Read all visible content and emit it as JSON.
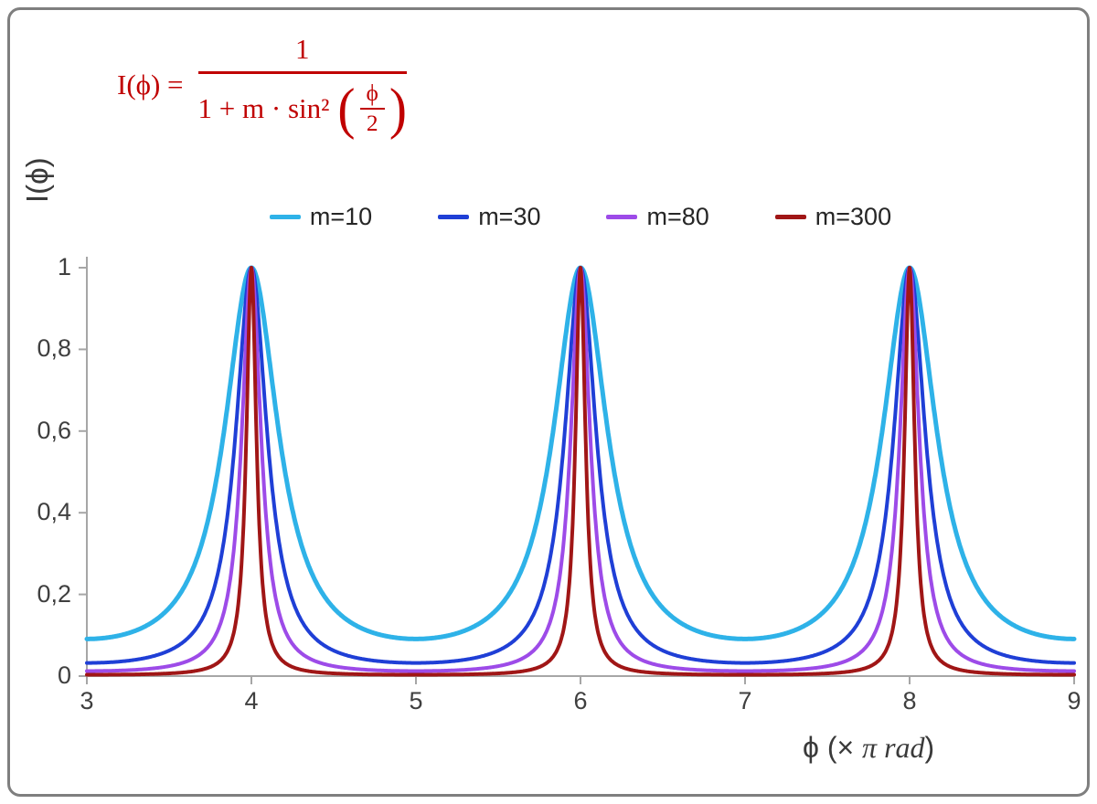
{
  "formula": {
    "lhs": "I(ϕ) =",
    "numerator": "1",
    "den_prefix": "1 + m · sin²",
    "lparen": "(",
    "rparen": ")",
    "inner_num": "ϕ",
    "inner_den": "2",
    "color": "#c00000"
  },
  "axis": {
    "ylabel": "I(ϕ)",
    "xlabel_pre": "ϕ  (× ",
    "xlabel_italic": "π rad",
    "xlabel_post": ")"
  },
  "chart_data": {
    "type": "line",
    "title": "",
    "function": "I(ϕ) = 1 / (1 + m·sin²(ϕ/2)), x axis in units of π rad, so I(x) = 1/(1 + m·sin²(πx/2))",
    "xlabel": "ϕ (× π rad)",
    "ylabel": "I(ϕ)",
    "xlim": [
      3,
      9
    ],
    "ylim": [
      0,
      1
    ],
    "x_tick_values": [
      3,
      4,
      5,
      6,
      7,
      8,
      9
    ],
    "x_tick_labels": [
      "3",
      "4",
      "5",
      "6",
      "7",
      "8",
      "9"
    ],
    "y_tick_values": [
      0,
      0.2,
      0.4,
      0.6,
      0.8,
      1
    ],
    "y_tick_labels": [
      "0",
      "0,2",
      "0,4",
      "0,6",
      "0,8",
      "1"
    ],
    "grid": false,
    "legend_position": "top-center",
    "peaks_at_x": [
      4,
      6,
      8
    ],
    "peak_value": 1,
    "series": [
      {
        "name": "m=10",
        "m": 10,
        "color": "#2eb2e8",
        "y_at_peaks": 1,
        "y_at_odd_x": 0.0909
      },
      {
        "name": "m=30",
        "m": 30,
        "color": "#1f3fd6",
        "y_at_peaks": 1,
        "y_at_odd_x": 0.0323
      },
      {
        "name": "m=80",
        "m": 80,
        "color": "#9d4be8",
        "y_at_peaks": 1,
        "y_at_odd_x": 0.0123
      },
      {
        "name": "m=300",
        "m": 300,
        "color": "#a01616",
        "y_at_peaks": 1,
        "y_at_odd_x": 0.0033
      }
    ]
  },
  "colors": {
    "axis": "#a6a6a6",
    "frame": "#7f7f7f",
    "tick_text": "#3f3f3f",
    "legend_text": "#262626"
  }
}
